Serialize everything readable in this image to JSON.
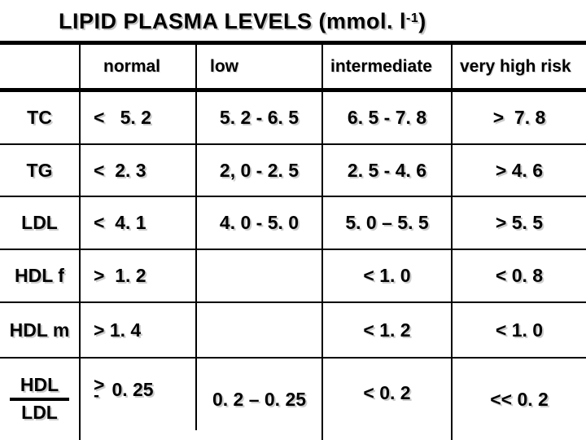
{
  "title": {
    "text": "LIPID PLASMA LEVELS (mmol. l",
    "superscript": "-1",
    "suffix": ")"
  },
  "table": {
    "headers": {
      "metric": "",
      "normal": "normal",
      "low": "low",
      "intermediate": "intermediate",
      "very_high_risk": "very high risk"
    },
    "rows": [
      {
        "label": "TC",
        "normal": "<   5. 2",
        "low": "5. 2 - 6. 5",
        "intermediate": "6. 5 - 7. 8",
        "very_high_risk": ">  7. 8"
      },
      {
        "label": "TG",
        "normal": "<  2. 3",
        "low": "2, 0 - 2. 5",
        "intermediate": "2. 5 - 4. 6",
        "very_high_risk": "> 4. 6"
      },
      {
        "label": "LDL",
        "normal": "<  4. 1",
        "low": "4. 0 - 5. 0",
        "intermediate": "5. 0 – 5. 5",
        "very_high_risk": "> 5. 5"
      },
      {
        "label": "HDL f",
        "normal": ">  1. 2",
        "low": "",
        "intermediate": "< 1. 0",
        "very_high_risk": "< 0. 8"
      },
      {
        "label": "HDL m",
        "normal": "> 1. 4",
        "low": "",
        "intermediate": "< 1. 2",
        "very_high_risk": "< 1. 0"
      },
      {
        "label_numerator": "HDL",
        "label_denominator": "LDL",
        "normal_symbol": ">",
        "normal_underline": "-",
        "normal_value": "0. 25",
        "low": "0. 2 – 0. 25",
        "intermediate": "< 0. 2",
        "very_high_risk": "<< 0. 2"
      }
    ]
  },
  "colors": {
    "text": "#000000",
    "background": "#ffffff",
    "grid_line": "#000000",
    "text_shadow": "#cccccc"
  }
}
